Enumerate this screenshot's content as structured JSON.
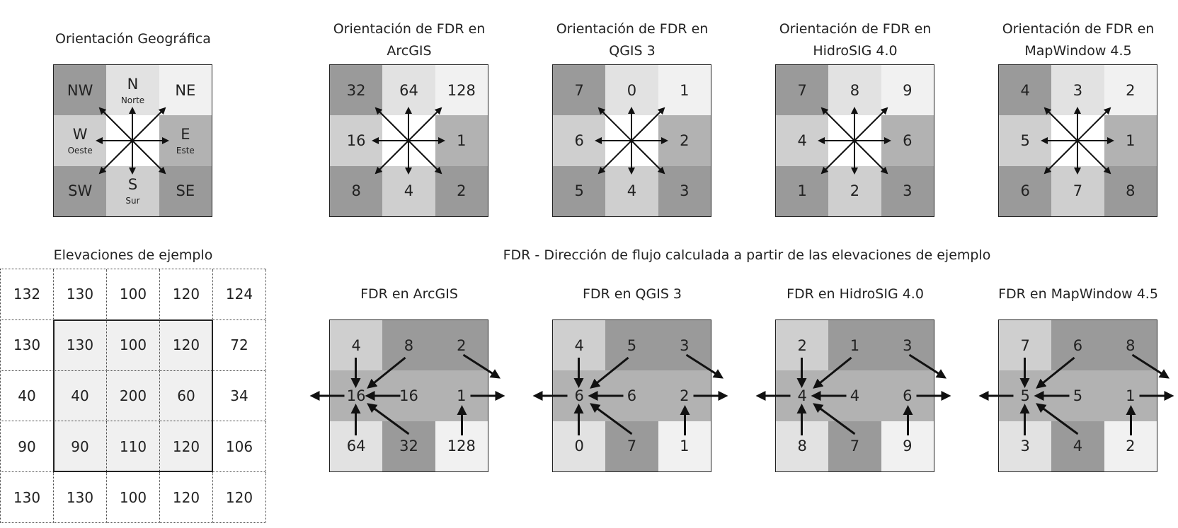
{
  "geo": {
    "title": "Orientación Geográfica",
    "cells": [
      {
        "label": "NW",
        "sub": "",
        "shade": "dark"
      },
      {
        "label": "N",
        "sub": "Norte",
        "shade": "vlight"
      },
      {
        "label": "NE",
        "sub": "",
        "shade": "white"
      },
      {
        "label": "W",
        "sub": "Oeste",
        "shade": "light"
      },
      {
        "label": "",
        "sub": "",
        "shade": "center"
      },
      {
        "label": "E",
        "sub": "Este",
        "shade": "mid"
      },
      {
        "label": "SW",
        "sub": "",
        "shade": "dark"
      },
      {
        "label": "S",
        "sub": "Sur",
        "shade": "light"
      },
      {
        "label": "SE",
        "sub": "",
        "shade": "dark"
      }
    ]
  },
  "orientations": [
    {
      "title1": "Orientación de FDR en",
      "title2": "ArcGIS",
      "codes": [
        "32",
        "64",
        "128",
        "16",
        "",
        "1",
        "8",
        "4",
        "2"
      ]
    },
    {
      "title1": "Orientación de FDR en",
      "title2": "QGIS 3",
      "codes": [
        "7",
        "0",
        "1",
        "6",
        "",
        "2",
        "5",
        "4",
        "3"
      ]
    },
    {
      "title1": "Orientación de FDR en",
      "title2": "HidroSIG 4.0",
      "codes": [
        "7",
        "8",
        "9",
        "4",
        "",
        "6",
        "1",
        "2",
        "3"
      ]
    },
    {
      "title1": "Orientación de FDR en",
      "title2": "MapWindow 4.5",
      "codes": [
        "4",
        "3",
        "2",
        "5",
        "",
        "1",
        "6",
        "7",
        "8"
      ]
    }
  ],
  "elevations": {
    "title": "Elevaciones de ejemplo",
    "rows": [
      [
        "132",
        "130",
        "100",
        "120",
        "124"
      ],
      [
        "130",
        "130",
        "100",
        "120",
        "72"
      ],
      [
        "40",
        "40",
        "200",
        "60",
        "34"
      ],
      [
        "90",
        "90",
        "110",
        "120",
        "106"
      ],
      [
        "130",
        "130",
        "100",
        "120",
        "120"
      ]
    ]
  },
  "fdr_heading": "FDR - Dirección de flujo calculada a partir de las elevaciones de ejemplo",
  "results": [
    {
      "title": "FDR en ArcGIS",
      "values": [
        "4",
        "8",
        "2",
        "16",
        "16",
        "1",
        "64",
        "32",
        "128"
      ]
    },
    {
      "title": "FDR en QGIS 3",
      "values": [
        "4",
        "5",
        "3",
        "6",
        "6",
        "2",
        "0",
        "7",
        "1"
      ]
    },
    {
      "title": "FDR en HidroSIG 4.0",
      "values": [
        "2",
        "1",
        "3",
        "4",
        "4",
        "6",
        "8",
        "7",
        "9"
      ]
    },
    {
      "title": "FDR en MapWindow 4.5",
      "values": [
        "7",
        "6",
        "8",
        "5",
        "5",
        "1",
        "3",
        "4",
        "2"
      ]
    }
  ],
  "colors": {
    "dark": "#9a9a9a",
    "mid": "#b2b2b2",
    "light": "#cfcfcf",
    "vlight": "#e2e2e2",
    "white": "#f1f1f1",
    "center": "#ffffff"
  }
}
